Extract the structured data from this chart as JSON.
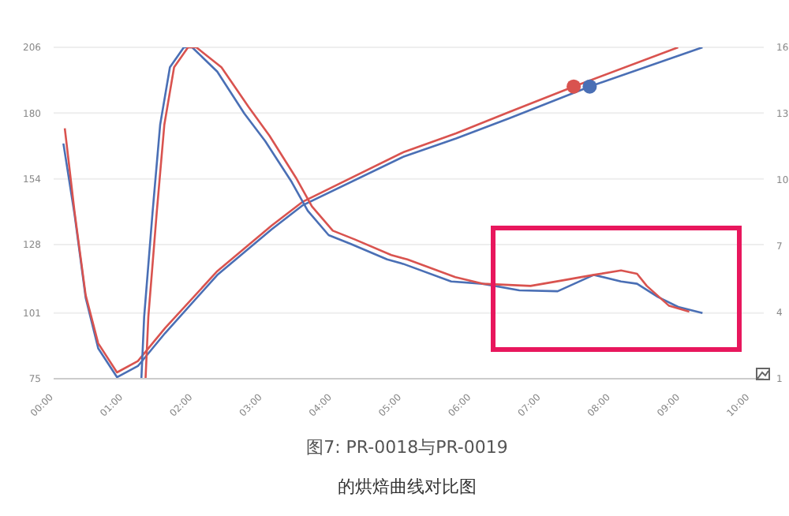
{
  "chart_data": {
    "type": "line",
    "title": "图7: PR-0018与PR-0019",
    "subtitle": "的烘焙曲线对比图",
    "xlim": [
      0,
      10.2
    ],
    "xticks": [
      {
        "value": 0,
        "label": "00:00"
      },
      {
        "value": 1,
        "label": "01:00"
      },
      {
        "value": 2,
        "label": "02:00"
      },
      {
        "value": 3,
        "label": "03:00"
      },
      {
        "value": 4,
        "label": "04:00"
      },
      {
        "value": 5,
        "label": "05:00"
      },
      {
        "value": 6,
        "label": "06:00"
      },
      {
        "value": 7,
        "label": "07:00"
      },
      {
        "value": 8,
        "label": "08:00"
      },
      {
        "value": 9,
        "label": "09:00"
      },
      {
        "value": 10,
        "label": "10:00"
      }
    ],
    "ylim": [
      75,
      206
    ],
    "yticks": [
      75,
      101,
      128,
      154,
      180,
      206
    ],
    "y2lim": [
      1,
      16
    ],
    "y2ticks": [
      1,
      4,
      7,
      10,
      13,
      16
    ],
    "grid": "y",
    "marker": "none",
    "line_style": "solid",
    "series": [
      {
        "color": "#4a6fb5",
        "x": [
          0.14,
          0.3,
          0.46,
          0.64,
          0.91,
          1.21,
          1.6,
          2.35,
          3.13,
          3.58,
          5.02,
          5.78,
          6.55,
          7.7,
          9.32
        ],
        "values": [
          168,
          140,
          107,
          87,
          75.6,
          80,
          93,
          116,
          134,
          143.6,
          162.7,
          170,
          178,
          190.5,
          206
        ]
      },
      {
        "color": "#d9534f",
        "x": [
          0.16,
          0.3,
          0.46,
          0.64,
          0.91,
          1.21,
          1.6,
          2.35,
          3.13,
          3.58,
          5.02,
          5.78,
          6.55,
          7.47,
          8.97
        ],
        "values": [
          174,
          141,
          108,
          89,
          77.5,
          82,
          95,
          117.5,
          135.5,
          145,
          164.5,
          172,
          180.5,
          190.5,
          206
        ]
      },
      {
        "color": "#4a6fb5",
        "axis": "y2",
        "x": [
          1.26,
          1.3,
          1.42,
          1.53,
          1.67,
          1.87,
          1.99,
          2.35,
          2.74,
          3.04,
          3.42,
          3.65,
          3.95,
          4.27,
          4.79,
          5.02,
          5.71,
          6.16,
          6.69,
          7.24,
          7.76,
          8.15,
          8.38,
          8.68,
          8.97,
          9.32
        ],
        "values": [
          1,
          3.8,
          8.5,
          12.5,
          15.1,
          16,
          16,
          14.9,
          13,
          11.75,
          9.9,
          8.6,
          7.5,
          7.1,
          6.4,
          6.2,
          5.4,
          5.3,
          5,
          4.96,
          5.7,
          5.4,
          5.3,
          4.7,
          4.25,
          3.97
        ]
      },
      {
        "color": "#d9534f",
        "axis": "y2",
        "x": [
          1.32,
          1.36,
          1.48,
          1.59,
          1.73,
          1.93,
          2.05,
          2.41,
          2.8,
          3.1,
          3.48,
          3.71,
          4.01,
          4.33,
          4.85,
          5.08,
          5.77,
          6.16,
          6.85,
          7.31,
          7.76,
          8.15,
          8.38,
          8.52,
          8.84,
          9.13
        ],
        "values": [
          1,
          3.8,
          8.5,
          12.5,
          15.1,
          16,
          16,
          15.1,
          13.3,
          12,
          10.1,
          8.8,
          7.7,
          7.3,
          6.6,
          6.4,
          5.6,
          5.3,
          5.2,
          5.45,
          5.7,
          5.9,
          5.75,
          5.2,
          4.3,
          4.04
        ]
      },
      {
        "type": "scatter",
        "color": "#4a6fb5",
        "marker": "circle",
        "x": [
          7.7
        ],
        "values": [
          190.5
        ]
      },
      {
        "type": "scatter",
        "color": "#d9534f",
        "marker": "circle",
        "x": [
          7.47
        ],
        "values": [
          190.5
        ]
      }
    ]
  }
}
